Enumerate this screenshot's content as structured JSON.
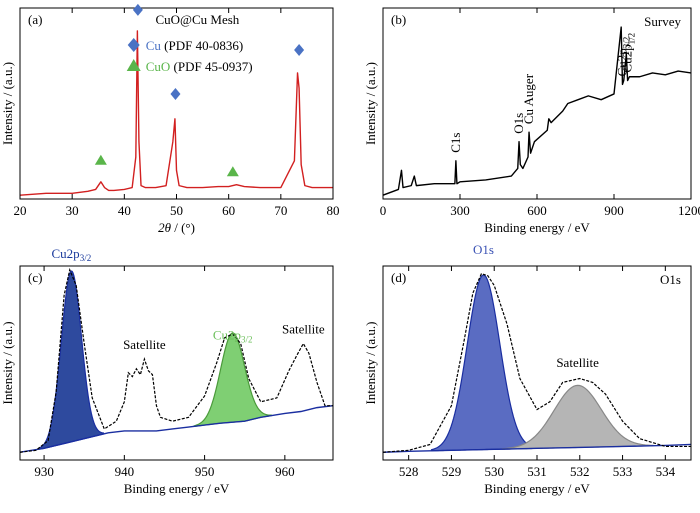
{
  "chart_data": [
    {
      "panel": "(a)",
      "type": "line",
      "legend_title": "CuO@Cu Mesh",
      "legend": [
        {
          "symbol": "diamond",
          "color": "#4a72c4",
          "name": "Cu",
          "ref": "(PDF 40-0836)"
        },
        {
          "symbol": "triangle",
          "color": "#5ab54a",
          "name": "CuO",
          "ref": "(PDF 45-0937)"
        }
      ],
      "xlabel_pre": "2",
      "xlabel_var": "θ",
      "xlabel_post": " / (°)",
      "ylabel": "Intensity / (a.u.)",
      "xlim": [
        20,
        80
      ],
      "ylim": [
        0,
        1
      ],
      "xticks": [
        "20",
        "30",
        "40",
        "50",
        "60",
        "70",
        "80"
      ],
      "series": [
        {
          "color": "#d22020",
          "x": [
            20,
            25,
            30,
            33,
            34.5,
            35.5,
            36.2,
            37,
            38,
            40,
            41.5,
            42.2,
            42.5,
            42.8,
            43.2,
            44,
            46,
            48,
            49.3,
            49.7,
            50,
            50.5,
            52,
            55,
            58,
            60,
            61.5,
            63,
            66,
            70,
            72.6,
            73.2,
            73.5,
            73.9,
            74.6,
            76,
            78,
            80
          ],
          "y": [
            0.02,
            0.03,
            0.03,
            0.04,
            0.05,
            0.09,
            0.06,
            0.045,
            0.045,
            0.05,
            0.06,
            0.22,
            0.88,
            0.3,
            0.07,
            0.06,
            0.06,
            0.07,
            0.3,
            0.42,
            0.15,
            0.07,
            0.06,
            0.06,
            0.065,
            0.065,
            0.075,
            0.065,
            0.06,
            0.06,
            0.2,
            0.66,
            0.58,
            0.18,
            0.07,
            0.06,
            0.06,
            0.06
          ]
        }
      ],
      "markers": [
        {
          "symbol": "triangle",
          "x": 35.5,
          "y": 0.2
        },
        {
          "symbol": "diamond",
          "x": 42.6,
          "y": 0.99
        },
        {
          "symbol": "diamond",
          "x": 49.8,
          "y": 0.55
        },
        {
          "symbol": "triangle",
          "x": 60.8,
          "y": 0.14
        },
        {
          "symbol": "diamond",
          "x": 73.5,
          "y": 0.78
        }
      ]
    },
    {
      "panel": "(b)",
      "type": "line",
      "label": "Survey",
      "xlabel": "Binding energy / eV",
      "ylabel": "Intensity / (a.u.)",
      "xlim": [
        0,
        1200
      ],
      "ylim": [
        0,
        1
      ],
      "xticks": [
        "0",
        "300",
        "600",
        "900",
        "1200"
      ],
      "series": [
        {
          "color": "#000000",
          "x": [
            0,
            60,
            72,
            78,
            110,
            122,
            130,
            200,
            280,
            284,
            288,
            300,
            400,
            500,
            525,
            530,
            535,
            545,
            565,
            569,
            575,
            590,
            640,
            646,
            655,
            700,
            720,
            760,
            800,
            850,
            900,
            928,
            933,
            938,
            948,
            953,
            960,
            1000,
            1050,
            1100,
            1150,
            1200
          ],
          "y": [
            0.02,
            0.05,
            0.15,
            0.06,
            0.07,
            0.12,
            0.07,
            0.08,
            0.08,
            0.2,
            0.08,
            0.09,
            0.1,
            0.12,
            0.16,
            0.3,
            0.18,
            0.16,
            0.22,
            0.35,
            0.24,
            0.3,
            0.36,
            0.42,
            0.4,
            0.46,
            0.5,
            0.52,
            0.54,
            0.52,
            0.55,
            0.9,
            0.6,
            0.62,
            0.76,
            0.62,
            0.64,
            0.64,
            0.66,
            0.65,
            0.67,
            0.66
          ]
        }
      ],
      "annotations": [
        {
          "text": "C1s",
          "x": 284
        },
        {
          "text": "O1s",
          "x": 530
        },
        {
          "text": "Cu Auger",
          "x": 569
        },
        {
          "text": "Cu2p",
          "sub": "3/2",
          "x": 933
        },
        {
          "text": "Cu2p",
          "sub": "1/2",
          "x": 953
        }
      ]
    },
    {
      "panel": "(c)",
      "type": "line",
      "xlabel": "Binding energy / eV",
      "ylabel": "Intensity / (a.u.)",
      "xlim": [
        927,
        966
      ],
      "ylim": [
        0,
        1
      ],
      "xticks": [
        "930",
        "940",
        "950",
        "960"
      ],
      "raw": {
        "color": "#000000",
        "x": [
          927,
          929,
          930.5,
          931.5,
          932.5,
          933.2,
          934,
          935,
          936,
          937.5,
          939,
          940,
          940.5,
          941,
          941.5,
          942,
          942.5,
          943,
          943.5,
          944,
          944.5,
          946,
          948,
          950,
          951.5,
          952.5,
          953.5,
          954.5,
          955.5,
          957,
          959,
          960.5,
          961.5,
          962.3,
          963,
          964,
          965,
          966
        ],
        "y": [
          0.04,
          0.05,
          0.1,
          0.35,
          0.85,
          0.98,
          0.9,
          0.6,
          0.32,
          0.16,
          0.2,
          0.3,
          0.45,
          0.43,
          0.47,
          0.44,
          0.52,
          0.46,
          0.44,
          0.28,
          0.22,
          0.2,
          0.22,
          0.33,
          0.5,
          0.63,
          0.65,
          0.6,
          0.42,
          0.3,
          0.32,
          0.46,
          0.54,
          0.6,
          0.55,
          0.4,
          0.28,
          0.28
        ]
      },
      "baseline": {
        "color": "#1a2ea0",
        "x": [
          927,
          930,
          933,
          936,
          938,
          940,
          944,
          946,
          948,
          950,
          952,
          955,
          957,
          960,
          962,
          964,
          966
        ],
        "y": [
          0.04,
          0.06,
          0.09,
          0.12,
          0.14,
          0.15,
          0.15,
          0.16,
          0.17,
          0.18,
          0.19,
          0.2,
          0.22,
          0.24,
          0.25,
          0.27,
          0.28
        ]
      },
      "peaks": [
        {
          "name": "Cu2p",
          "sub": "3/2",
          "name_color": "#1a3a9c",
          "fill": "#2e4a9e",
          "stroke": "#1a2ea0",
          "center": 933.4,
          "width": 1.25,
          "height": 0.88
        },
        {
          "name": "Cu2p",
          "sub": "3/2",
          "name_color": "#6bbf5a",
          "fill": "#7fcf73",
          "stroke": "#4a9a3a",
          "center": 953.5,
          "width": 1.5,
          "height": 0.46
        }
      ],
      "labels": [
        {
          "text": "Satellite",
          "x": 942.5
        },
        {
          "text": "Satellite",
          "x": 962.3
        }
      ]
    },
    {
      "panel": "(d)",
      "type": "line",
      "label": "O1s",
      "xlabel": "Binding energy / eV",
      "ylabel": "Intensity / (a.u.)",
      "xlim": [
        527.4,
        534.6
      ],
      "ylim": [
        0,
        1
      ],
      "xticks": [
        "528",
        "529",
        "530",
        "531",
        "532",
        "533",
        "534"
      ],
      "raw": {
        "color": "#000000",
        "x": [
          527.4,
          528,
          528.5,
          529,
          529.3,
          529.5,
          529.7,
          529.85,
          530,
          530.3,
          530.6,
          531,
          531.3,
          531.6,
          532,
          532.3,
          532.6,
          533,
          533.4,
          534,
          534.6
        ],
        "y": [
          0.04,
          0.05,
          0.08,
          0.28,
          0.62,
          0.86,
          0.96,
          0.95,
          0.9,
          0.7,
          0.42,
          0.26,
          0.3,
          0.4,
          0.42,
          0.4,
          0.34,
          0.2,
          0.11,
          0.07,
          0.07
        ]
      },
      "baseline": {
        "color": "#1a2ea0",
        "x": [
          527.4,
          528,
          529,
          530,
          531,
          532,
          533,
          534,
          534.6
        ],
        "y": [
          0.04,
          0.045,
          0.05,
          0.055,
          0.06,
          0.065,
          0.07,
          0.075,
          0.08
        ]
      },
      "peaks": [
        {
          "name": "O1s",
          "name_color": "#3a52b4",
          "fill": "#5a6cc2",
          "stroke": "#1a2ea0",
          "center": 529.75,
          "width": 0.38,
          "height": 0.9
        },
        {
          "name": "Satellite",
          "name_color": "#000000",
          "fill": "#b5b5b5",
          "stroke": "#888888",
          "center": 531.95,
          "width": 0.55,
          "height": 0.32
        }
      ]
    }
  ]
}
